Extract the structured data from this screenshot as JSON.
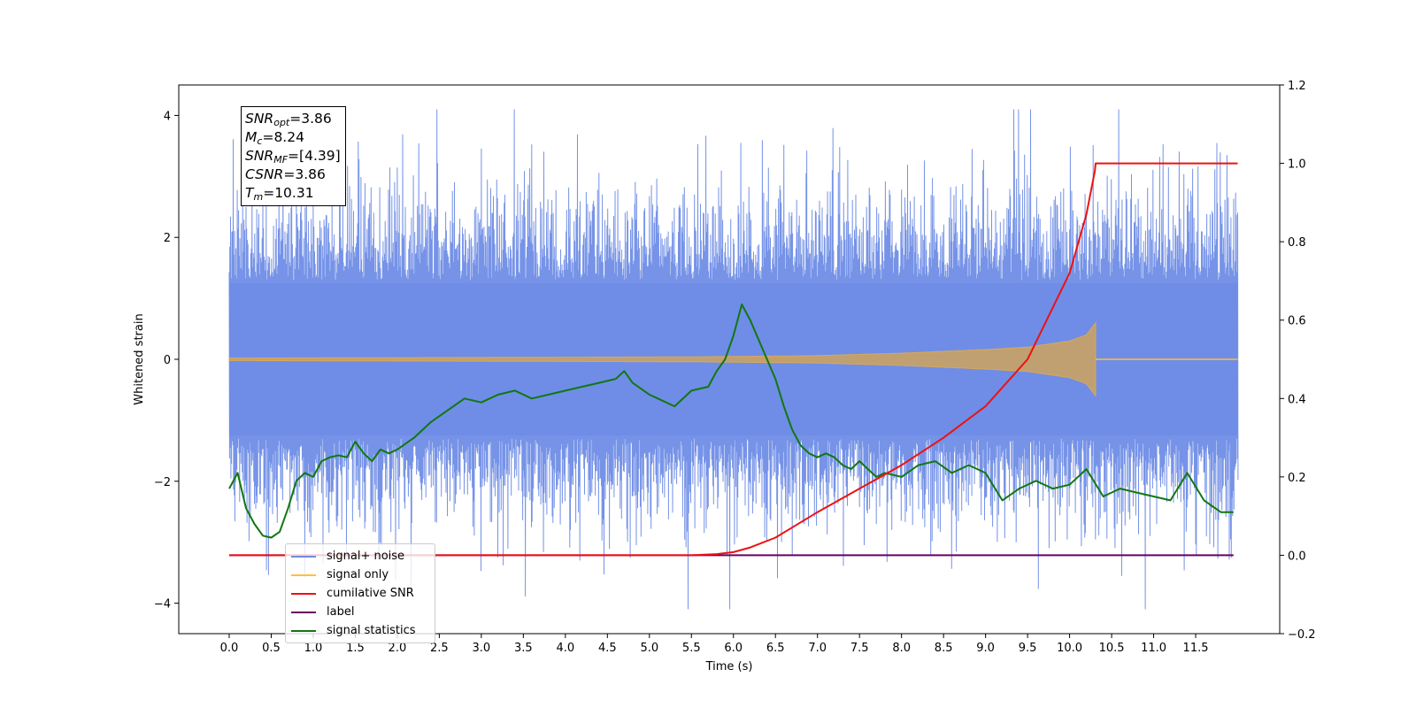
{
  "chart_data": {
    "type": "line",
    "xlabel": "Time (s)",
    "ylabel_left": "Whitened strain",
    "ylabel_right": "",
    "xlim": [
      -0.6,
      12.5
    ],
    "ylim_left": [
      -4.5,
      4.5
    ],
    "ylim_right": [
      -0.2,
      1.2
    ],
    "x_ticks": [
      0.0,
      0.5,
      1.0,
      1.5,
      2.0,
      2.5,
      3.0,
      3.5,
      4.0,
      4.5,
      5.0,
      5.5,
      6.0,
      6.5,
      7.0,
      7.5,
      8.0,
      8.5,
      9.0,
      9.5,
      10.0,
      10.5,
      11.0,
      11.5
    ],
    "x_tick_labels": [
      "0.0",
      "0.5",
      "1.0",
      "1.5",
      "2.0",
      "2.5",
      "3.0",
      "3.5",
      "4.0",
      "4.5",
      "5.0",
      "5.5",
      "6.0",
      "6.5",
      "7.0",
      "7.5",
      "8.0",
      "8.5",
      "9.0",
      "9.5",
      "10.0",
      "10.5",
      "11.0",
      "11.5"
    ],
    "y_left_ticks": [
      4,
      2,
      0,
      -2,
      -4
    ],
    "y_left_tick_labels": [
      "4",
      "2",
      "0",
      "−2",
      "−4"
    ],
    "y_right_ticks": [
      1.2,
      1.0,
      0.8,
      0.6,
      0.4,
      0.2,
      0.0,
      -0.2
    ],
    "y_right_tick_labels": [
      "1.2",
      "1.0",
      "0.8",
      "0.6",
      "0.4",
      "0.2",
      "0.0",
      "−0.2"
    ],
    "annotation": {
      "snr_opt": "3.86",
      "mc": "8.24",
      "snr_mf": "[4.39]",
      "csnr": "3.86",
      "tm": "10.31"
    },
    "legend": {
      "placement": "lower-left",
      "entries": [
        {
          "label": "signal+ noise",
          "color": "#6f8de6"
        },
        {
          "label": "signal only",
          "color": "#ffbf40"
        },
        {
          "label": "cumilative SNR",
          "color": "#ee1111"
        },
        {
          "label": "label",
          "color": "#660066"
        },
        {
          "label": "signal statistics",
          "color": "#117711"
        }
      ]
    },
    "series": [
      {
        "name": "signal+ noise",
        "axis": "left",
        "color": "#6f8de6",
        "x_range": [
          0.0,
          12.0
        ],
        "typical_envelope": [
          -2.0,
          2.0
        ],
        "max_peak": 4.1,
        "min_peak": -4.1
      },
      {
        "name": "signal only",
        "axis": "left",
        "color": "#ffbf40",
        "x_range": [
          0.0,
          10.31
        ],
        "envelope": {
          "x": [
            0,
            5.5,
            7,
            8,
            9,
            9.5,
            10,
            10.2,
            10.31
          ],
          "amp": [
            0.02,
            0.04,
            0.06,
            0.1,
            0.16,
            0.2,
            0.3,
            0.4,
            0.6
          ]
        }
      },
      {
        "name": "cumilative SNR",
        "axis": "right",
        "color": "#ee1111",
        "x": [
          0.0,
          5.5,
          5.8,
          6.0,
          6.2,
          6.5,
          7.0,
          7.5,
          8.0,
          8.5,
          9.0,
          9.5,
          10.0,
          10.2,
          10.3,
          10.31,
          12.0
        ],
        "values": [
          0.0,
          0.0,
          0.003,
          0.008,
          0.02,
          0.045,
          0.11,
          0.17,
          0.23,
          0.3,
          0.38,
          0.5,
          0.72,
          0.87,
          0.98,
          1.0,
          1.0
        ]
      },
      {
        "name": "label",
        "axis": "right",
        "color": "#660066",
        "x": [
          0.0,
          11.95
        ],
        "values": [
          0.0,
          0.0
        ]
      },
      {
        "name": "signal statistics",
        "axis": "right",
        "color": "#117711",
        "x": [
          0.0,
          0.1,
          0.2,
          0.3,
          0.4,
          0.5,
          0.6,
          0.7,
          0.8,
          0.9,
          1.0,
          1.1,
          1.2,
          1.3,
          1.4,
          1.5,
          1.6,
          1.7,
          1.8,
          1.9,
          2.0,
          2.2,
          2.4,
          2.6,
          2.8,
          3.0,
          3.2,
          3.4,
          3.6,
          3.8,
          4.0,
          4.2,
          4.4,
          4.6,
          4.7,
          4.8,
          5.0,
          5.1,
          5.3,
          5.5,
          5.7,
          5.8,
          5.9,
          6.0,
          6.1,
          6.2,
          6.3,
          6.4,
          6.5,
          6.6,
          6.7,
          6.8,
          6.9,
          7.0,
          7.1,
          7.2,
          7.3,
          7.4,
          7.5,
          7.6,
          7.7,
          7.8,
          8.0,
          8.2,
          8.4,
          8.6,
          8.8,
          9.0,
          9.2,
          9.4,
          9.6,
          9.8,
          10.0,
          10.2,
          10.4,
          10.6,
          10.8,
          11.0,
          11.2,
          11.4,
          11.6,
          11.8,
          11.95
        ],
        "values": [
          0.17,
          0.21,
          0.12,
          0.08,
          0.05,
          0.045,
          0.06,
          0.12,
          0.19,
          0.21,
          0.2,
          0.24,
          0.25,
          0.255,
          0.25,
          0.29,
          0.26,
          0.24,
          0.27,
          0.26,
          0.27,
          0.3,
          0.34,
          0.37,
          0.4,
          0.39,
          0.41,
          0.42,
          0.4,
          0.41,
          0.42,
          0.43,
          0.44,
          0.45,
          0.47,
          0.44,
          0.41,
          0.4,
          0.38,
          0.42,
          0.43,
          0.47,
          0.5,
          0.56,
          0.64,
          0.6,
          0.55,
          0.5,
          0.45,
          0.38,
          0.32,
          0.28,
          0.26,
          0.25,
          0.26,
          0.25,
          0.23,
          0.22,
          0.24,
          0.22,
          0.2,
          0.21,
          0.2,
          0.23,
          0.24,
          0.21,
          0.23,
          0.21,
          0.14,
          0.17,
          0.19,
          0.17,
          0.18,
          0.22,
          0.15,
          0.17,
          0.16,
          0.15,
          0.14,
          0.21,
          0.14,
          0.11,
          0.11
        ]
      }
    ]
  }
}
